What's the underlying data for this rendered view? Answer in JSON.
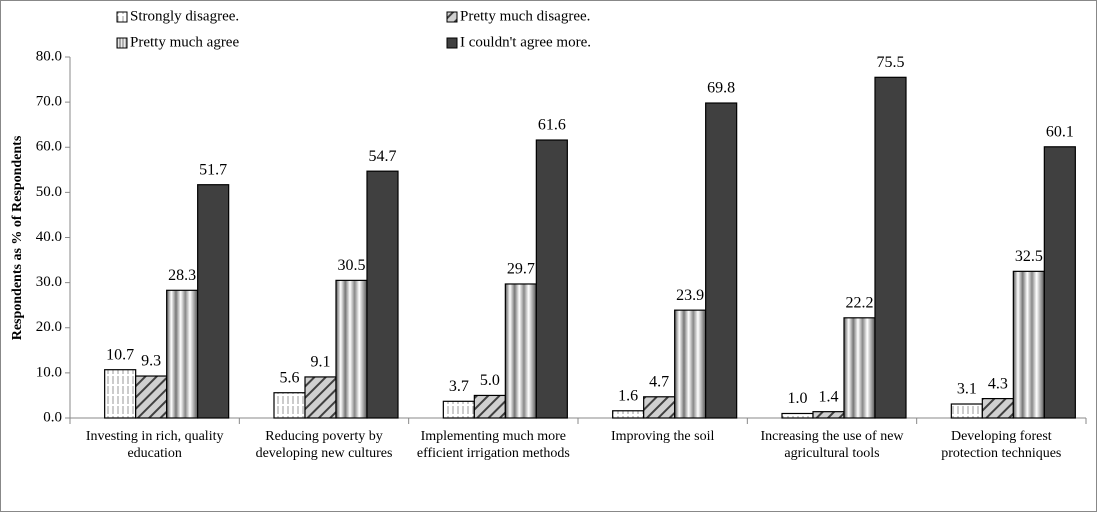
{
  "chart_data": {
    "type": "bar",
    "y_label": "Respondents as % of Respondents",
    "categories": [
      "Investing in rich, quality education",
      "Reducing poverty by developing new cultures",
      "Implementing much more efficient irrigation methods",
      "Improving the soil",
      "Increasing the use of new agricultural tools",
      "Developing forest protection techniques"
    ],
    "series": [
      {
        "name": "Strongly disagree.",
        "color": "#ffffff",
        "values": [
          10.7,
          5.6,
          3.7,
          1.6,
          1.0,
          3.1
        ],
        "value_labels": [
          "10.7",
          "5.6",
          "3.7",
          "1.6",
          "1.0",
          "3.1"
        ]
      },
      {
        "name": "Pretty much disagree.",
        "color": "#a6a6a6",
        "values": [
          9.3,
          9.1,
          5.0,
          4.7,
          1.4,
          4.3
        ],
        "value_labels": [
          "9.3",
          "9.1",
          "5.0",
          "4.7",
          "1.4",
          "4.3"
        ]
      },
      {
        "name": "Pretty much agree",
        "color": "#bfbfbf",
        "values": [
          28.3,
          30.5,
          29.7,
          23.9,
          22.2,
          32.5
        ],
        "value_labels": [
          "28.3",
          "30.5",
          "29.7",
          "23.9",
          "22.2",
          "32.5"
        ]
      },
      {
        "name": "I couldn't agree more.",
        "color": "#404040",
        "values": [
          51.7,
          54.7,
          61.6,
          69.8,
          75.5,
          60.1
        ],
        "value_labels": [
          "51.7",
          "54.7",
          "61.6",
          "69.8",
          "75.5",
          "60.1"
        ]
      }
    ],
    "ylim": [
      0,
      80
    ],
    "yticks": [
      {
        "value": 0,
        "label": "0.0"
      },
      {
        "value": 10,
        "label": "10.0"
      },
      {
        "value": 20,
        "label": "20.0"
      },
      {
        "value": 30,
        "label": "30.0"
      },
      {
        "value": 40,
        "label": "40.0"
      },
      {
        "value": 50,
        "label": "50.0"
      },
      {
        "value": 60,
        "label": "60.0"
      },
      {
        "value": 70,
        "label": "70.0"
      },
      {
        "value": 80,
        "label": "80.0"
      }
    ],
    "grid": false,
    "legend": "top-left"
  }
}
